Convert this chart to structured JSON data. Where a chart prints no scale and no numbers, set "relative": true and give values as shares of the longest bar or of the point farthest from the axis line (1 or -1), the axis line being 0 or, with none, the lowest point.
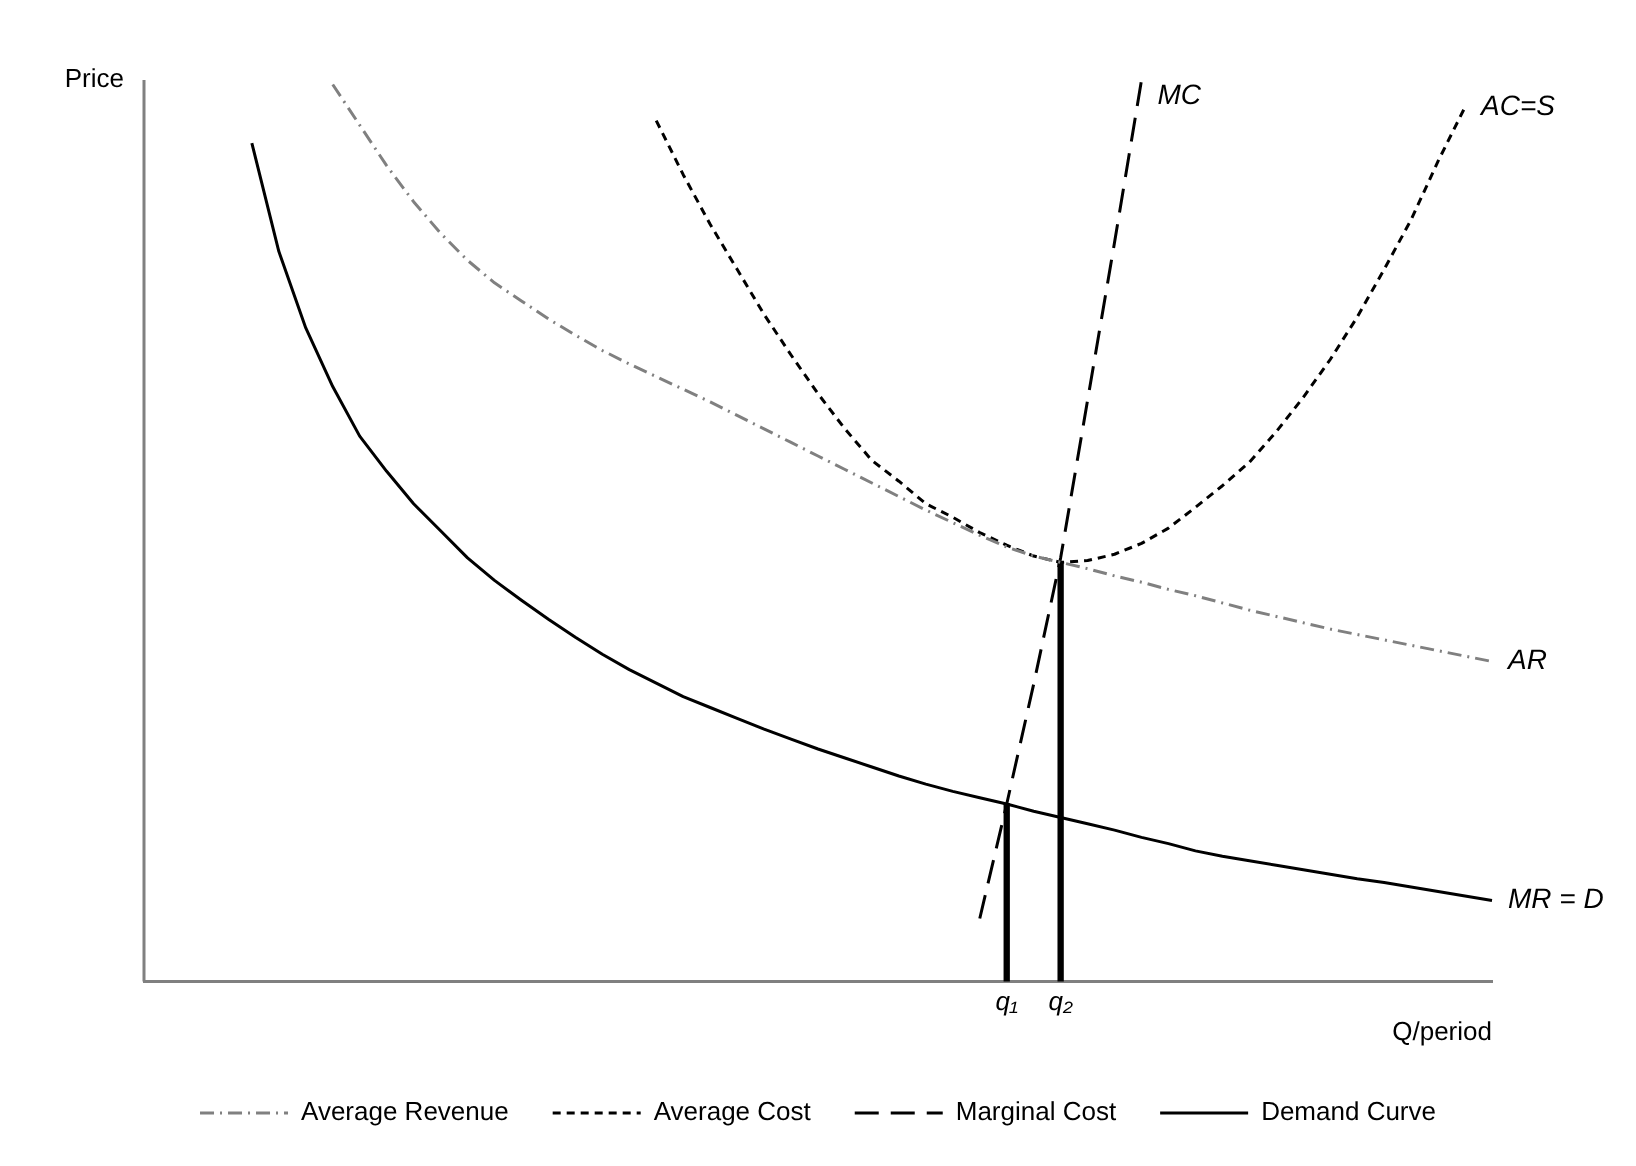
{
  "chart_data": {
    "type": "line",
    "relative": true,
    "xlabel": "Q/period",
    "ylabel": "Price",
    "marker": "none",
    "grid": false,
    "legend": "bottom",
    "tick_labels": "x",
    "categories": [
      null,
      null,
      null,
      null,
      null,
      null,
      null,
      null,
      null,
      null,
      null,
      null,
      null,
      null,
      null,
      null,
      null,
      null,
      null,
      null,
      null,
      null,
      null,
      null,
      null,
      null,
      null,
      null,
      null,
      null,
      null,
      null,
      "q₁",
      null,
      "q₂",
      null,
      null,
      null,
      null,
      null,
      null,
      null,
      null,
      null,
      null,
      null,
      null,
      null,
      null,
      null,
      null
    ],
    "series": [
      {
        "name": "Average Revenue",
        "color": "#808080",
        "line_style": "dashdot",
        "values": [
          null,
          null,
          null,
          null,
          null,
          null,
          null,
          0.995,
          0.95,
          0.905,
          0.865,
          0.83,
          0.8,
          0.775,
          0.755,
          0.735,
          0.717,
          0.7,
          0.685,
          0.671,
          0.657,
          0.643,
          0.628,
          0.613,
          0.598,
          0.583,
          0.568,
          0.553,
          0.538,
          0.523,
          0.509,
          0.495,
          0.482,
          0.472,
          0.465,
          0.458,
          0.45,
          0.443,
          0.435,
          0.428,
          0.42,
          0.412,
          0.405,
          0.398,
          0.391,
          0.385,
          0.379,
          0.373,
          0.367,
          0.361,
          0.355
        ]
      },
      {
        "name": "Average Cost",
        "color": "#000000",
        "line_style": "dotted",
        "values": [
          null,
          null,
          null,
          null,
          null,
          null,
          null,
          null,
          null,
          null,
          null,
          null,
          null,
          null,
          null,
          null,
          null,
          null,
          null,
          0.955,
          0.895,
          0.84,
          0.79,
          0.74,
          0.695,
          0.652,
          0.613,
          0.578,
          0.555,
          0.53,
          0.515,
          0.498,
          0.484,
          0.472,
          0.465,
          0.467,
          0.474,
          0.486,
          0.503,
          0.526,
          0.55,
          0.576,
          0.61,
          0.648,
          0.69,
          0.737,
          0.79,
          0.845,
          0.91,
          0.97,
          null
        ]
      },
      {
        "name": "Marginal Cost",
        "color": "#000000",
        "line_style": "dashed",
        "values": [
          null,
          null,
          null,
          null,
          null,
          null,
          null,
          null,
          null,
          null,
          null,
          null,
          null,
          null,
          null,
          null,
          null,
          null,
          null,
          null,
          null,
          null,
          null,
          null,
          null,
          null,
          null,
          null,
          null,
          null,
          null,
          0.07,
          0.197,
          0.33,
          0.47,
          0.645,
          0.82,
          1.0,
          null,
          null,
          null,
          null,
          null,
          null,
          null,
          null,
          null,
          null,
          null,
          null,
          null
        ]
      },
      {
        "name": "Demand Curve",
        "color": "#000000",
        "line_style": "solid",
        "values": [
          null,
          null,
          null,
          null,
          0.93,
          0.81,
          0.725,
          0.66,
          0.605,
          0.566,
          0.53,
          0.5,
          0.47,
          0.445,
          0.423,
          0.402,
          0.382,
          0.363,
          0.346,
          0.331,
          0.316,
          0.304,
          0.292,
          0.28,
          0.269,
          0.258,
          0.248,
          0.238,
          0.228,
          0.219,
          0.211,
          0.204,
          0.197,
          0.189,
          0.182,
          0.175,
          0.168,
          0.16,
          0.153,
          0.145,
          0.139,
          0.134,
          0.129,
          0.124,
          0.119,
          0.114,
          0.11,
          0.105,
          0.1,
          0.095,
          0.09
        ]
      },
      {
        "type": "bar",
        "color": "#000000",
        "values": [
          null,
          null,
          null,
          null,
          null,
          null,
          null,
          null,
          null,
          null,
          null,
          null,
          null,
          null,
          null,
          null,
          null,
          null,
          null,
          null,
          null,
          null,
          null,
          null,
          null,
          null,
          null,
          null,
          null,
          null,
          null,
          null,
          0.197,
          null,
          0.465,
          null,
          null,
          null,
          null,
          null,
          null,
          null,
          null,
          null,
          null,
          null,
          null,
          null,
          null,
          null,
          null
        ]
      }
    ],
    "annotations": [
      "AR",
      "AC=S",
      "MC",
      "MR = D"
    ]
  }
}
